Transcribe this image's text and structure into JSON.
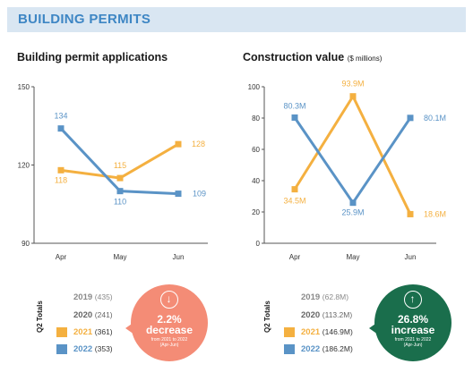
{
  "banner": {
    "title": "BUILDING PERMITS",
    "background": "#d9e6f2",
    "color": "#3e86c4"
  },
  "colors": {
    "s2021": "#f4b040",
    "s2022": "#5a93c6",
    "decrease": "#f48c76",
    "increase": "#1a6e4c"
  },
  "chart_data": [
    {
      "type": "line",
      "title": "Building permit applications",
      "subtitle": "",
      "categories": [
        "Apr",
        "May",
        "Jun"
      ],
      "ylim": [
        90,
        150
      ],
      "yticks": [
        90,
        120,
        150
      ],
      "grid": false,
      "series": [
        {
          "name": "2021",
          "values": [
            118,
            115,
            128
          ],
          "labels": [
            "118",
            "115",
            "128"
          ]
        },
        {
          "name": "2022",
          "values": [
            134,
            110,
            109
          ],
          "labels": [
            "134",
            "110",
            "109"
          ]
        }
      ]
    },
    {
      "type": "line",
      "title": "Construction value",
      "subtitle": "($ millions)",
      "categories": [
        "Apr",
        "May",
        "Jun"
      ],
      "ylim": [
        0,
        100
      ],
      "yticks": [
        0,
        20,
        40,
        60,
        80,
        100
      ],
      "grid": false,
      "series": [
        {
          "name": "2021",
          "values": [
            34.5,
            93.9,
            18.6
          ],
          "labels": [
            "34.5M",
            "93.9M",
            "18.6M"
          ]
        },
        {
          "name": "2022",
          "values": [
            80.3,
            25.9,
            80.1
          ],
          "labels": [
            "80.3M",
            "25.9M",
            "80.1M"
          ]
        }
      ]
    }
  ],
  "left_summary": {
    "caption": "Q2 Totals",
    "rows": [
      {
        "year": "2019",
        "value": "(435)"
      },
      {
        "year": "2020",
        "value": "(241)"
      },
      {
        "year": "2021",
        "value": "(361)"
      },
      {
        "year": "2022",
        "value": "(353)"
      }
    ],
    "bubble": {
      "icon": "↓",
      "pct": "2.2%",
      "word": "decrease",
      "note1": "from 2021 to 2022",
      "note2": "(Apr-Jun)"
    }
  },
  "right_summary": {
    "caption": "Q2 Totals",
    "rows": [
      {
        "year": "2019",
        "value": "(62.8M)"
      },
      {
        "year": "2020",
        "value": "(113.2M)"
      },
      {
        "year": "2021",
        "value": "(146.9M)"
      },
      {
        "year": "2022",
        "value": "(186.2M)"
      }
    ],
    "bubble": {
      "icon": "↑",
      "pct": "26.8%",
      "word": "increase",
      "note1": "from 2021 to 2022",
      "note2": "(Apr-Jun)"
    }
  }
}
